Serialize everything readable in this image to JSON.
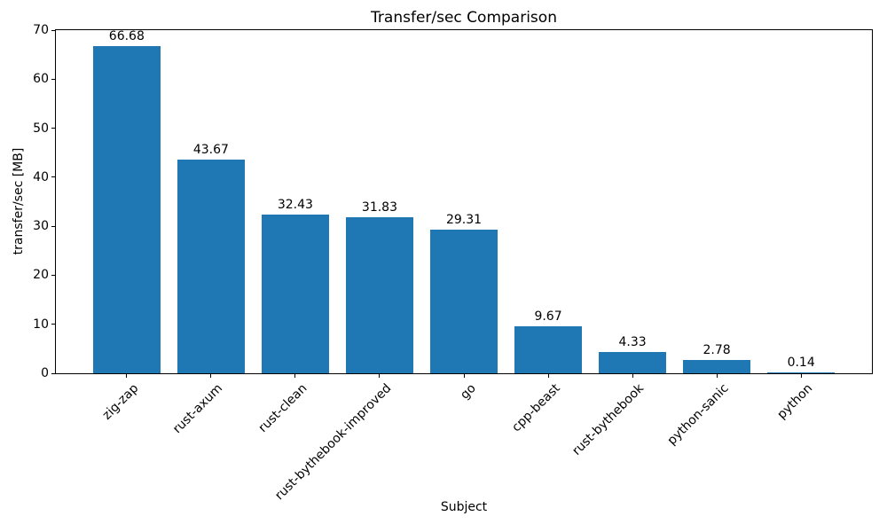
{
  "figure": {
    "background": "#ffffff"
  },
  "chart_data": {
    "type": "bar",
    "title": "Transfer/sec Comparison",
    "xlabel": "Subject",
    "ylabel": "transfer/sec [MB]",
    "categories": [
      "zig-zap",
      "rust-axum",
      "rust-clean",
      "rust-bythebook-improved",
      "go",
      "cpp-beast",
      "rust-bythebook",
      "python-sanic",
      "python"
    ],
    "values": [
      66.68,
      43.67,
      32.43,
      31.83,
      29.31,
      9.67,
      4.33,
      2.78,
      0.14
    ],
    "value_labels": [
      "66.68",
      "43.67",
      "32.43",
      "31.83",
      "29.31",
      "9.67",
      "4.33",
      "2.78",
      "0.14"
    ],
    "ylim": [
      0,
      70
    ],
    "yticks": [
      0,
      10,
      20,
      30,
      40,
      50,
      60,
      70
    ],
    "bar_color": "#1f77b4",
    "grid": false,
    "legend": "none",
    "x_tick_rotation_deg": 45
  }
}
